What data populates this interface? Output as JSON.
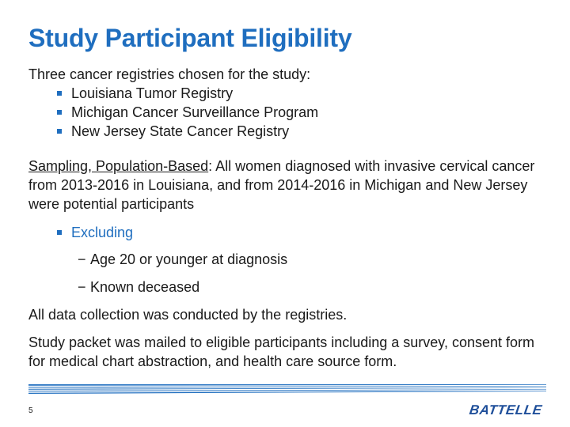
{
  "title": "Study Participant Eligibility",
  "intro": {
    "lead": "Three cancer registries chosen for the study:",
    "registries": [
      "Louisiana Tumor Registry",
      "Michigan Cancer Surveillance Program",
      "New Jersey State Cancer Registry"
    ]
  },
  "sampling": {
    "heading": "Sampling, Population-Based",
    "text": ": All women diagnosed with invasive cervical cancer from 2013-2016 in Louisiana, and from 2014-2016 in Michigan and New Jersey were potential participants"
  },
  "exclusions": {
    "label": "Excluding",
    "items": [
      "Age 20 or younger at diagnosis",
      "Known deceased"
    ]
  },
  "paragraphs": [
    "All data collection was conducted by the registries.",
    "Study packet was mailed to eligible participants including a survey, consent form for medical chart abstraction, and health care source form."
  ],
  "footer": {
    "page_number": "5",
    "logo_text": "BATTELLE"
  },
  "colors": {
    "accent": "#1f6ebf",
    "logo": "#1f4f9a"
  }
}
